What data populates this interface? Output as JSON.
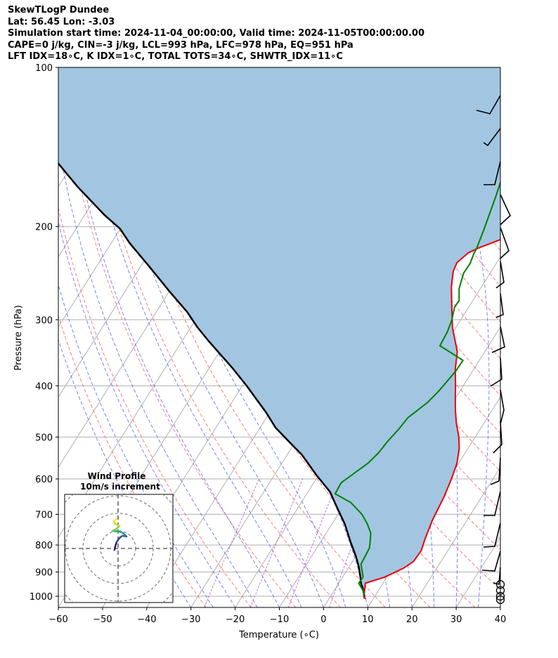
{
  "header": {
    "title": "SkewTLogP Dundee",
    "location": "Lat: 56.45   Lon: -3.03",
    "times": "Simulation start time: 2024-11-04_00:00:00, Valid time: 2024-11-05T00:00:00.00",
    "indices1": "CAPE=0 j/kg, CIN=-3 j/kg, LCL=993 hPa, LFC=978 hPa, EQ=951 hPa",
    "indices2": "LFT IDX=18∘C, K IDX=1∘C, TOTAL TOTS=34∘C, SHWTR_IDX=11∘C"
  },
  "chart_data": {
    "type": "line",
    "subtype": "skew-t log-p",
    "xlabel": "Temperature (∘C)",
    "ylabel": "Pressure (hPa)",
    "xlim": [
      -60,
      40
    ],
    "ylim": [
      1050,
      100
    ],
    "log_pressure": true,
    "grid": true,
    "x_ticks": [
      -60,
      -50,
      -40,
      -30,
      -20,
      -10,
      0,
      10,
      20,
      30,
      40
    ],
    "y_ticks": [
      100,
      200,
      300,
      400,
      500,
      600,
      700,
      800,
      900,
      1000
    ],
    "colors": {
      "temperature": "#e8000b",
      "dewpoint": "#008000",
      "parcel": "#000000",
      "cape_fill": "#a2c6e1",
      "dry_adiabats": "#ff6666",
      "moist_adiabats": "#5566ee",
      "mixing_ratio": "#aa55cc",
      "isotherms": "#b0b0b0"
    },
    "series": [
      {
        "key": "temperature",
        "points": [
          [
            8.3,
            1012
          ],
          [
            7.5,
            1000
          ],
          [
            7.0,
            980
          ],
          [
            6.3,
            955
          ],
          [
            6.0,
            945
          ],
          [
            9.5,
            920
          ],
          [
            12.5,
            885
          ],
          [
            13.8,
            860
          ],
          [
            14.0,
            820
          ],
          [
            13.2,
            780
          ],
          [
            12.2,
            720
          ],
          [
            11.5,
            650
          ],
          [
            10.6,
            600
          ],
          [
            9.6,
            560
          ],
          [
            8.0,
            525
          ],
          [
            6.3,
            500
          ],
          [
            3.7,
            470
          ],
          [
            1.7,
            445
          ],
          [
            -0.2,
            420
          ],
          [
            -2.0,
            397
          ],
          [
            -4.2,
            372
          ],
          [
            -6.2,
            345
          ],
          [
            -10.8,
            310
          ],
          [
            -13.7,
            285
          ],
          [
            -16.8,
            260
          ],
          [
            -18.6,
            243
          ],
          [
            -19.0,
            234
          ],
          [
            -17.8,
            224
          ],
          [
            -16.0,
            219
          ],
          [
            -12.6,
            212
          ],
          [
            -10.6,
            208
          ],
          [
            -8.5,
            200
          ],
          [
            -8.1,
            192
          ],
          [
            -7.4,
            178
          ],
          [
            -5.8,
            167
          ],
          [
            -4.4,
            155
          ],
          [
            -3.6,
            145
          ],
          [
            -2.7,
            130
          ],
          [
            -2.3,
            118
          ],
          [
            -1.7,
            108
          ],
          [
            -0.5,
            100
          ]
        ]
      },
      {
        "key": "dewpoint",
        "points": [
          [
            7.5,
            1000
          ],
          [
            6.8,
            980
          ],
          [
            4.5,
            945
          ],
          [
            4.6,
            920
          ],
          [
            3.5,
            895
          ],
          [
            2.3,
            870
          ],
          [
            2.1,
            840
          ],
          [
            1.9,
            810
          ],
          [
            1.2,
            790
          ],
          [
            0.1,
            760
          ],
          [
            -2.0,
            730
          ],
          [
            -4.6,
            700
          ],
          [
            -8.8,
            665
          ],
          [
            -13.6,
            640
          ],
          [
            -13.8,
            610
          ],
          [
            -12.5,
            590
          ],
          [
            -10.5,
            560
          ],
          [
            -9.6,
            535
          ],
          [
            -9.2,
            510
          ],
          [
            -8.4,
            482
          ],
          [
            -8.0,
            460
          ],
          [
            -5.7,
            430
          ],
          [
            -4.8,
            409
          ],
          [
            -3.8,
            375
          ],
          [
            -3.7,
            358
          ],
          [
            -11.0,
            336
          ],
          [
            -11.3,
            316
          ],
          [
            -12.0,
            300
          ],
          [
            -13.2,
            284
          ],
          [
            -13.1,
            276
          ],
          [
            -14.8,
            262
          ],
          [
            -16.0,
            245
          ],
          [
            -15.9,
            235
          ],
          [
            -16.4,
            226
          ],
          [
            -16.7,
            218
          ],
          [
            -17.6,
            203
          ],
          [
            -18.6,
            189
          ],
          [
            -19.6,
            176
          ],
          [
            -20.8,
            163
          ],
          [
            -21.0,
            150
          ],
          [
            -19.7,
            140
          ],
          [
            -18.3,
            133
          ],
          [
            -15.2,
            124
          ],
          [
            -12.3,
            115
          ],
          [
            -8.6,
            106
          ],
          [
            -6.1,
            100
          ]
        ]
      },
      {
        "key": "parcel",
        "points": [
          [
            8.0,
            1010
          ],
          [
            7.6,
            1000
          ],
          [
            7.2,
            990
          ],
          [
            6.0,
            963
          ],
          [
            5.0,
            945
          ],
          [
            4.0,
            920
          ],
          [
            3.1,
            900
          ],
          [
            2.2,
            880
          ],
          [
            0.0,
            840
          ],
          [
            -3.2,
            790
          ],
          [
            -7.1,
            730
          ],
          [
            -12.0,
            670
          ],
          [
            -15.0,
            635
          ],
          [
            -20.5,
            590
          ],
          [
            -26.7,
            540
          ],
          [
            -31.5,
            510
          ],
          [
            -36.5,
            480
          ],
          [
            -40.7,
            450
          ],
          [
            -49.0,
            400
          ],
          [
            -54.8,
            370
          ],
          [
            -63.8,
            330
          ],
          [
            -68.5,
            310
          ],
          [
            -73.0,
            290
          ],
          [
            -80.0,
            265
          ],
          [
            -87.4,
            240
          ],
          [
            -95.8,
            215
          ],
          [
            -100.0,
            202
          ],
          [
            -105.6,
            190
          ],
          [
            -115.7,
            168
          ],
          [
            -124.3,
            150
          ],
          [
            -133.6,
            133
          ],
          [
            -140.1,
            122
          ],
          [
            -147.3,
            112
          ],
          [
            -155.2,
            102
          ],
          [
            -157.0,
            100
          ]
        ]
      }
    ],
    "wind_barbs": [
      {
        "p": 1015,
        "calm": true
      },
      {
        "p": 1000,
        "calm": true
      },
      {
        "p": 975,
        "calm": true
      },
      {
        "p": 950,
        "calm": true
      }
    ],
    "hodograph": {
      "title": "Wind Profile",
      "subtitle": "10m/s increment",
      "ring_increment_ms": 10,
      "colors": [
        "#3b0f70",
        "#414487",
        "#2a788e",
        "#22a884",
        "#7ad151",
        "#bddf26",
        "#fde725"
      ]
    }
  }
}
